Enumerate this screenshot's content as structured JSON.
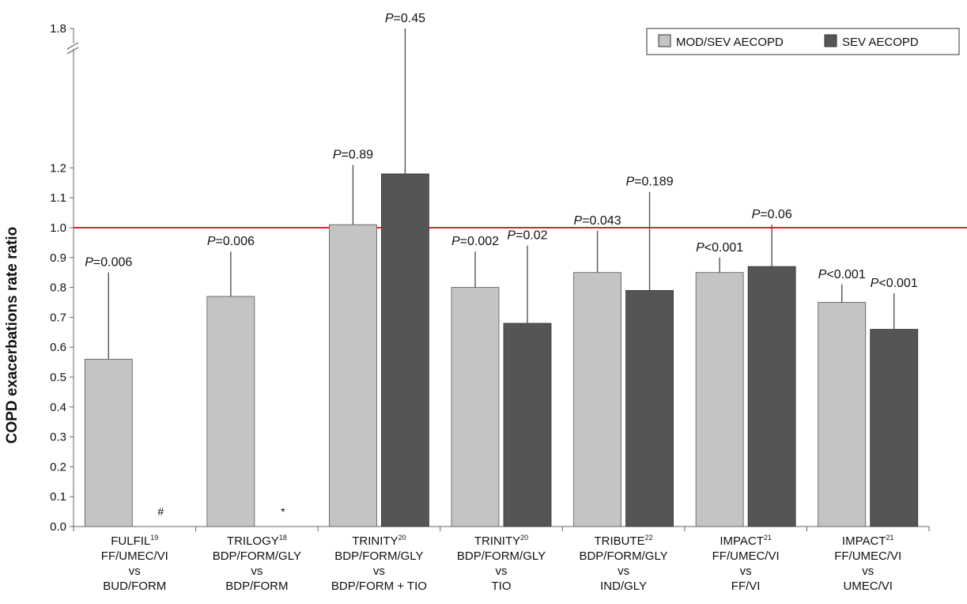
{
  "chart_data": {
    "type": "bar",
    "ylabel": "COPD exacerbations rate ratio",
    "yticks": [
      "0.0",
      "0.1",
      "0.2",
      "0.3",
      "0.4",
      "0.5",
      "0.6",
      "0.7",
      "0.8",
      "0.9",
      "1.0",
      "1.1",
      "1.2",
      "1.8"
    ],
    "ylim": [
      0,
      1.8
    ],
    "axis_break": "between 1.2 and 1.8",
    "reference_line": {
      "y": 1.0,
      "color": "#e8202a"
    },
    "legend": {
      "placement": "top-right"
    },
    "colors": {
      "mod_sev": "#c4c4c4",
      "sev": "#555555"
    },
    "categories": [
      {
        "name": "FULFIL",
        "sup": "19",
        "lines": [
          "FF/UMEC/VI",
          "vs",
          "BUD/FORM"
        ]
      },
      {
        "name": "TRILOGY",
        "sup": "18",
        "lines": [
          "BDP/FORM/GLY",
          "vs",
          "BDP/FORM"
        ]
      },
      {
        "name": "TRINITY",
        "sup": "20",
        "lines": [
          "BDP/FORM/GLY",
          "vs",
          "BDP/FORM + TIO"
        ]
      },
      {
        "name": "TRINITY",
        "sup": "20",
        "lines": [
          "BDP/FORM/GLY",
          "vs",
          "TIO"
        ]
      },
      {
        "name": "TRIBUTE",
        "sup": "22",
        "lines": [
          "BDP/FORM/GLY",
          "vs",
          "IND/GLY"
        ]
      },
      {
        "name": "IMPACT",
        "sup": "21",
        "lines": [
          "FF/UMEC/VI",
          "vs",
          "FF/VI"
        ]
      },
      {
        "name": "IMPACT",
        "sup": "21",
        "lines": [
          "FF/UMEC/VI",
          "vs",
          "UMEC/VI"
        ]
      }
    ],
    "series": [
      {
        "name": "MOD/SEV AECOPD",
        "values": [
          0.56,
          0.77,
          1.01,
          0.8,
          0.85,
          0.85,
          0.75
        ],
        "ci_upper": [
          0.85,
          0.92,
          1.21,
          0.92,
          0.99,
          0.9,
          0.81
        ],
        "p_values": [
          "=0.006",
          "=0.006",
          "=0.89",
          "=0.002",
          "=0.043",
          "<0.001",
          "<0.001"
        ],
        "markers": [
          null,
          null,
          null,
          null,
          null,
          null,
          null
        ]
      },
      {
        "name": "SEV AECOPD",
        "values": [
          null,
          null,
          1.18,
          0.68,
          0.79,
          0.87,
          0.66
        ],
        "ci_upper": [
          null,
          null,
          1.8,
          0.94,
          1.12,
          1.01,
          0.78
        ],
        "p_values": [
          null,
          null,
          "=0.45",
          "=0.02",
          "=0.189",
          "=0.06",
          "<0.001"
        ],
        "markers": [
          "#",
          "*",
          null,
          null,
          null,
          null,
          null
        ]
      }
    ]
  }
}
